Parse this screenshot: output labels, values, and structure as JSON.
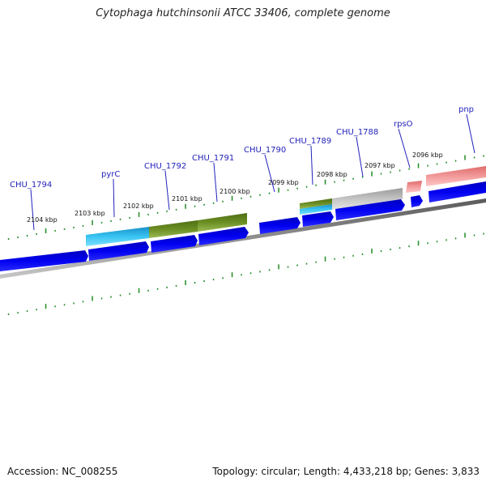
{
  "title": "Cytophaga hutchinsonii ATCC 33406, complete genome",
  "footer": {
    "accession": "Accession: NC_008255",
    "stats": "Topology: circular; Length: 4,433,218 bp; Genes: 3,833"
  },
  "kbp_ticks": [
    "2104 kbp",
    "2103 kbp",
    "2102 kbp",
    "2101 kbp",
    "2100 kbp",
    "2099 kbp",
    "2098 kbp",
    "2097 kbp",
    "2096 kbp"
  ],
  "gene_labels": [
    "CHU_1794",
    "pyrC",
    "CHU_1792",
    "CHU_1791",
    "CHU_1790",
    "CHU_1789",
    "CHU_1788",
    "rpsO",
    "pnp"
  ],
  "colors": {
    "cds_arrow": "#0000ee",
    "cds_cyan": "#22bbee",
    "cds_olive": "#6b8e23",
    "cds_grey": "#b5b5b5",
    "cds_pink": "#f08080",
    "backbone": "#808080",
    "tick": "#228b22",
    "label": "#2222bb"
  }
}
